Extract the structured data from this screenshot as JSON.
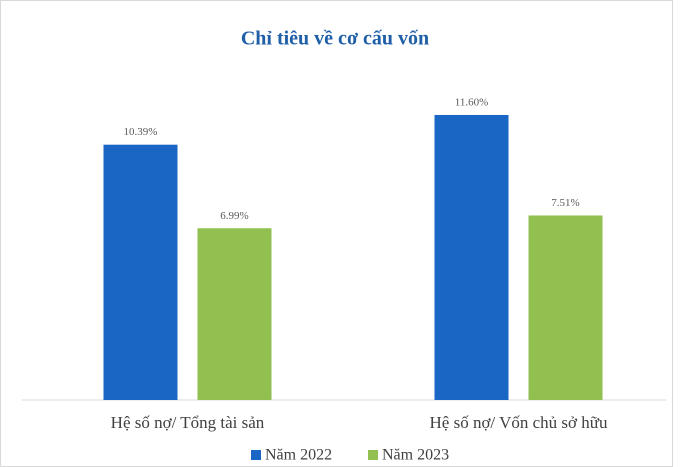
{
  "chart_data": {
    "type": "bar",
    "title": "Chỉ tiêu về cơ cấu vốn",
    "categories": [
      "Hệ số nợ/ Tổng tài sản",
      "Hệ số nợ/ Vốn chủ sở hữu"
    ],
    "series": [
      {
        "name": "Năm 2022",
        "color": "#1a66c4",
        "values": [
          10.39,
          11.6
        ],
        "value_labels": [
          "10.39%",
          "11.60%"
        ]
      },
      {
        "name": "Năm 2023",
        "color": "#92c050",
        "values": [
          6.99,
          7.51
        ],
        "value_labels": [
          "6.99%",
          "7.51%"
        ]
      }
    ],
    "ylim": [
      0,
      14
    ]
  }
}
